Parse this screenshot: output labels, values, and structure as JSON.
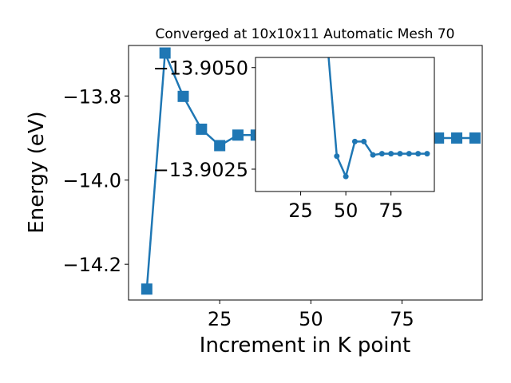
{
  "chart_data": [
    {
      "type": "line",
      "title": "Converged at 10x10x11 Automatic Mesh 70",
      "xlabel": "Increment in K point",
      "ylabel": "Energy (eV)",
      "xlim": [
        0,
        97
      ],
      "ylim": [
        -14.285,
        -13.68
      ],
      "xticks": [
        25,
        50,
        75
      ],
      "yticks": [
        -13.8,
        -14.0,
        -14.2
      ],
      "ytick_labels": [
        "−13.8",
        "−14.0",
        "−14.2"
      ],
      "marker": "square",
      "color": "#1f77b4",
      "grid": false,
      "series": [
        {
          "x": [
            5,
            10,
            15,
            20,
            25,
            30,
            35,
            40,
            45,
            50,
            55,
            60,
            65,
            70,
            75,
            80,
            85,
            90,
            95
          ],
          "values": [
            -14.259,
            -13.698,
            -13.801,
            -13.879,
            -13.918,
            -13.893,
            -13.893,
            -13.9,
            -13.9,
            -13.9,
            -13.9,
            -13.9,
            -13.9,
            -13.9,
            -13.9,
            -13.9,
            -13.9,
            -13.9,
            -13.9
          ]
        }
      ]
    },
    {
      "type": "line",
      "title": "",
      "inset": true,
      "xlim": [
        0,
        99
      ],
      "ylim": [
        -13.90195,
        -13.90525
      ],
      "xticks": [
        25,
        50,
        75
      ],
      "yticks": [
        -13.905,
        -13.9025
      ],
      "ytick_labels": [
        "−13.9050",
        "−13.9025"
      ],
      "marker": "circle",
      "color": "#1f77b4",
      "series": [
        {
          "x": [
            40,
            45,
            50,
            55,
            60,
            65,
            70,
            75,
            80,
            85,
            90,
            95
          ],
          "values": [
            -13.9055,
            -13.90282,
            -13.90232,
            -13.90318,
            -13.90318,
            -13.90285,
            -13.90288,
            -13.90288,
            -13.90288,
            -13.90288,
            -13.90288,
            -13.90288
          ]
        }
      ]
    }
  ]
}
